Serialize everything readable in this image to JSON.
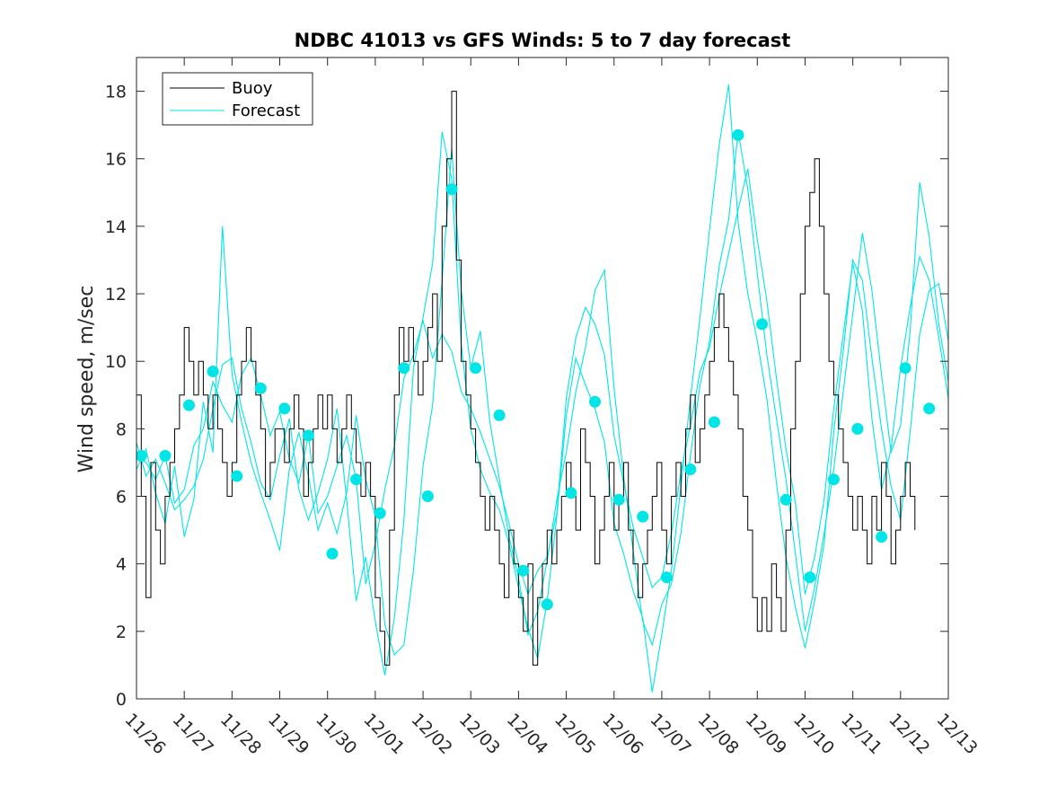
{
  "chart_data": {
    "type": "line",
    "title": "NDBC 41013 vs GFS Winds: 5 to 7 day forecast",
    "xlabel": "",
    "ylabel": "Wind speed, m/sec",
    "xlim": [
      0,
      17
    ],
    "ylim": [
      0,
      19
    ],
    "categories": [
      "11/26",
      "11/27",
      "11/28",
      "11/29",
      "11/30",
      "12/01",
      "12/02",
      "12/03",
      "12/04",
      "12/05",
      "12/06",
      "12/07",
      "12/08",
      "12/09",
      "12/10",
      "12/11",
      "12/12",
      "12/13"
    ],
    "yticks": [
      0,
      2,
      4,
      6,
      8,
      10,
      12,
      14,
      16,
      18
    ],
    "ytick_labels": [
      "0",
      "2",
      "4",
      "6",
      "8",
      "10",
      "12",
      "14",
      "16",
      "18"
    ],
    "legend": {
      "position": "top-left",
      "entries": [
        "Buoy",
        "Forecast"
      ]
    },
    "colors": {
      "buoy": "#000000",
      "forecast": "#00e5e5",
      "markers": "#00e5e5"
    },
    "series": [
      {
        "name": "Buoy",
        "x": [
          0,
          0.1,
          0.2,
          0.3,
          0.4,
          0.5,
          0.6,
          0.7,
          0.8,
          0.9,
          1.0,
          1.1,
          1.2,
          1.3,
          1.4,
          1.5,
          1.6,
          1.7,
          1.8,
          1.9,
          2.0,
          2.1,
          2.2,
          2.3,
          2.4,
          2.5,
          2.6,
          2.7,
          2.8,
          2.9,
          3.0,
          3.1,
          3.2,
          3.3,
          3.4,
          3.5,
          3.6,
          3.7,
          3.8,
          3.9,
          4.0,
          4.1,
          4.2,
          4.3,
          4.4,
          4.5,
          4.6,
          4.7,
          4.8,
          4.9,
          5.0,
          5.1,
          5.2,
          5.3,
          5.4,
          5.5,
          5.6,
          5.7,
          5.8,
          5.9,
          6.0,
          6.1,
          6.2,
          6.3,
          6.4,
          6.5,
          6.6,
          6.7,
          6.8,
          6.9,
          7.0,
          7.1,
          7.2,
          7.3,
          7.4,
          7.5,
          7.6,
          7.7,
          7.8,
          7.9,
          8.0,
          8.1,
          8.2,
          8.3,
          8.4,
          8.5,
          8.6,
          8.7,
          8.8,
          8.9,
          9.0,
          9.1,
          9.2,
          9.3,
          9.4,
          9.5,
          9.6,
          9.7,
          9.8,
          9.9,
          10.0,
          10.1,
          10.2,
          10.3,
          10.4,
          10.5,
          10.6,
          10.7,
          10.8,
          10.9,
          11.0,
          11.1,
          11.2,
          11.3,
          11.4,
          11.5,
          11.6,
          11.7,
          11.8,
          11.9,
          12.0,
          12.1,
          12.2,
          12.3,
          12.4,
          12.5,
          12.6,
          12.7,
          12.8,
          12.9,
          13.0,
          13.1,
          13.2,
          13.3,
          13.4,
          13.5,
          13.6,
          13.7,
          13.8,
          13.9,
          14.0,
          14.1,
          14.2,
          14.3,
          14.4,
          14.5,
          14.6,
          14.7,
          14.8,
          14.9,
          15.0,
          15.1,
          15.2,
          15.3,
          15.4,
          15.5,
          15.6,
          15.7,
          15.8,
          15.9,
          16.0,
          16.1,
          16.2,
          16.3
        ],
        "values": [
          9,
          6,
          3,
          7,
          5,
          4,
          6,
          7,
          8,
          9,
          11,
          10,
          9,
          10,
          9,
          8,
          9,
          8,
          7,
          6,
          7,
          9,
          10,
          11,
          10,
          9,
          8,
          6,
          7,
          8,
          8,
          7,
          8,
          9,
          8,
          6,
          7,
          8,
          9,
          8,
          9,
          8,
          7,
          8,
          9,
          8,
          7,
          6,
          7,
          6,
          3,
          2,
          1,
          5,
          9,
          11,
          10,
          11,
          10,
          9,
          10,
          11,
          12,
          10,
          14,
          16,
          18,
          13,
          10,
          9,
          8,
          7,
          6,
          5,
          6,
          5,
          4,
          3,
          5,
          4,
          3,
          2,
          4,
          1,
          3,
          4,
          5,
          4,
          5,
          6,
          7,
          6,
          5,
          8,
          7,
          6,
          4,
          5,
          6,
          7,
          5,
          6,
          7,
          5,
          4,
          3,
          4,
          5,
          6,
          7,
          5,
          4,
          6,
          7,
          6,
          8,
          9,
          7,
          8,
          9,
          10,
          11,
          12,
          11,
          10,
          9,
          8,
          6,
          5,
          3,
          2,
          3,
          2,
          4,
          3,
          2,
          5,
          8,
          10,
          12,
          14,
          15,
          16,
          14,
          12,
          10,
          9,
          8,
          7,
          6,
          5,
          6,
          5,
          4,
          6,
          5,
          7,
          6,
          4,
          5,
          6,
          7,
          6,
          5
        ]
      },
      {
        "name": "Forecast",
        "runs": [
          {
            "x": [
              0,
              0.2,
              0.4,
              0.6,
              0.8,
              1.0,
              1.2,
              1.4,
              1.6,
              1.8,
              2.0,
              2.2,
              2.4,
              2.6,
              2.8,
              3.0,
              3.2,
              3.4,
              3.6,
              3.8,
              4.0,
              4.2,
              4.4,
              4.6,
              4.8,
              5.0,
              5.2,
              5.4,
              5.6,
              5.8,
              6.0,
              6.2,
              6.4,
              6.6,
              6.8,
              7.0,
              7.2,
              7.4,
              7.6,
              7.8,
              8.0,
              8.2,
              8.4,
              8.6,
              8.8,
              9.0,
              9.2,
              9.4,
              9.6,
              9.8,
              10.0,
              10.2,
              10.4,
              10.6,
              10.8,
              11.0,
              11.2,
              11.4,
              11.6,
              11.8,
              12.0,
              12.2,
              12.4,
              12.6,
              12.8,
              13.0,
              13.2,
              13.4,
              13.6,
              13.8,
              14.0,
              14.2,
              14.4,
              14.6,
              14.8,
              15.0,
              15.2,
              15.4,
              15.6,
              15.8,
              16.0,
              16.2,
              16.4,
              16.6,
              16.8,
              17.0
            ],
            "values": [
              7.2,
              7.0,
              6.5,
              7.2,
              5.8,
              6.2,
              7.5,
              8.0,
              9.4,
              8.7,
              8.2,
              9.6,
              10.1,
              9.0,
              7.8,
              8.5,
              7.1,
              6.4,
              7.8,
              5.5,
              6.0,
              6.9,
              7.8,
              6.5,
              3.4,
              4.6,
              6.2,
              7.5,
              9.5,
              10.2,
              11.2,
              10.1,
              10.8,
              10.3,
              9.1,
              8.6,
              7.9,
              7.1,
              6.3,
              5.2,
              4.0,
              3.1,
              3.8,
              4.2,
              5.5,
              8.9,
              10.7,
              11.6,
              11.1,
              10.2,
              7.8,
              6.4,
              5.1,
              4.2,
              3.3,
              3.6,
              4.9,
              6.7,
              8.1,
              9.7,
              10.4,
              11.9,
              13.2,
              14.5,
              15.7,
              13.6,
              11.8,
              9.5,
              7.4,
              5.8,
              3.1,
              4.2,
              5.9,
              8.6,
              10.8,
              12.9,
              11.5,
              8.3,
              6.2,
              7.4,
              9.8,
              11.6,
              13.1,
              12.4,
              10.7,
              8.9
            ]
          },
          {
            "x": [
              0,
              0.2,
              0.4,
              0.6,
              0.8,
              1.0,
              1.2,
              1.4,
              1.6,
              1.8,
              2.0,
              2.2,
              2.4,
              2.6,
              2.8,
              3.0,
              3.2,
              3.4,
              3.6,
              3.8,
              4.0,
              4.2,
              4.4,
              4.6,
              4.8,
              5.0,
              5.2,
              5.4,
              5.6,
              5.8,
              6.0,
              6.2,
              6.4,
              6.6,
              6.8,
              7.0,
              7.2,
              7.4,
              7.6,
              7.8,
              8.0,
              8.2,
              8.4,
              8.6,
              8.8,
              9.0,
              9.2,
              9.4,
              9.6,
              9.8,
              10.0,
              10.2,
              10.4,
              10.6,
              10.8,
              11.0,
              11.2,
              11.4,
              11.6,
              11.8,
              12.0,
              12.2,
              12.4,
              12.6,
              12.8,
              13.0,
              13.2,
              13.4,
              13.6,
              13.8,
              14.0,
              14.2,
              14.4,
              14.6,
              14.8,
              15.0,
              15.2,
              15.4,
              15.6,
              15.8,
              16.0,
              16.2,
              16.4,
              16.6,
              16.8,
              17.0
            ],
            "values": [
              6.8,
              7.4,
              6.1,
              5.2,
              6.9,
              4.8,
              5.9,
              8.8,
              7.3,
              14.0,
              9.6,
              8.2,
              7.0,
              6.1,
              5.3,
              4.4,
              6.8,
              7.9,
              6.6,
              5.0,
              5.8,
              4.9,
              6.1,
              8.4,
              6.5,
              5.4,
              2.2,
              1.3,
              1.6,
              3.8,
              6.9,
              8.7,
              12.4,
              16.3,
              12.1,
              9.8,
              10.9,
              8.2,
              6.5,
              4.8,
              3.6,
              1.9,
              2.6,
              4.1,
              5.9,
              7.3,
              9.1,
              10.4,
              12.1,
              12.7,
              9.2,
              6.6,
              4.4,
              2.3,
              1.6,
              2.8,
              3.4,
              4.9,
              7.2,
              9.3,
              10.6,
              12.8,
              14.2,
              16.8,
              15.1,
              12.6,
              10.2,
              8.3,
              6.5,
              4.3,
              2.0,
              3.3,
              4.9,
              6.8,
              9.1,
              11.4,
              13.8,
              12.1,
              9.6,
              7.3,
              8.1,
              10.9,
              15.3,
              13.7,
              11.1,
              9.4
            ]
          },
          {
            "x": [
              0,
              0.2,
              0.4,
              0.6,
              0.8,
              1.0,
              1.2,
              1.4,
              1.6,
              1.8,
              2.0,
              2.2,
              2.4,
              2.6,
              2.8,
              3.0,
              3.2,
              3.4,
              3.6,
              3.8,
              4.0,
              4.2,
              4.4,
              4.6,
              4.8,
              5.0,
              5.2,
              5.4,
              5.6,
              5.8,
              6.0,
              6.2,
              6.4,
              6.6,
              6.8,
              7.0,
              7.2,
              7.4,
              7.6,
              7.8,
              8.0,
              8.2,
              8.4,
              8.6,
              8.8,
              9.0,
              9.2,
              9.4,
              9.6,
              9.8,
              10.0,
              10.2,
              10.4,
              10.6,
              10.8,
              11.0,
              11.2,
              11.4,
              11.6,
              11.8,
              12.0,
              12.2,
              12.4,
              12.6,
              12.8,
              13.0,
              13.2,
              13.4,
              13.6,
              13.8,
              14.0,
              14.2,
              14.4,
              14.6,
              14.8,
              15.0,
              15.2,
              15.4,
              15.6,
              15.8,
              16.0,
              16.2,
              16.4,
              16.6,
              16.8,
              17.0
            ],
            "values": [
              7.6,
              6.6,
              7.1,
              6.4,
              5.6,
              5.9,
              6.3,
              7.1,
              8.6,
              9.9,
              10.1,
              8.6,
              7.6,
              6.4,
              5.9,
              7.2,
              8.3,
              6.2,
              5.3,
              6.1,
              7.1,
              8.6,
              5.9,
              2.9,
              4.2,
              2.3,
              0.7,
              2.4,
              5.3,
              9.8,
              11.3,
              12.9,
              16.8,
              15.4,
              10.5,
              8.0,
              6.8,
              6.1,
              5.6,
              4.6,
              3.3,
              2.1,
              1.2,
              2.9,
              5.4,
              8.4,
              10.1,
              9.3,
              8.6,
              7.6,
              5.2,
              4.3,
              3.2,
              2.4,
              0.2,
              1.9,
              3.8,
              6.3,
              8.9,
              11.3,
              13.9,
              16.4,
              18.2,
              14.1,
              12.0,
              10.6,
              8.9,
              6.4,
              4.2,
              2.7,
              1.5,
              2.9,
              4.6,
              7.9,
              10.3,
              13.0,
              12.4,
              10.1,
              8.0,
              6.3,
              5.3,
              7.9,
              10.8,
              12.1,
              12.3,
              10.6
            ]
          }
        ]
      },
      {
        "name": "Forecast markers",
        "x": [
          0.1,
          0.6,
          1.1,
          1.6,
          2.1,
          2.6,
          3.1,
          3.6,
          4.1,
          4.6,
          5.1,
          5.6,
          6.1,
          6.6,
          7.1,
          7.6,
          8.1,
          8.6,
          9.1,
          9.6,
          10.1,
          10.6,
          11.1,
          11.6,
          12.1,
          12.6,
          13.1,
          13.6,
          14.1,
          14.6,
          15.1,
          15.6,
          16.1,
          16.6
        ],
        "values": [
          7.2,
          7.2,
          8.7,
          9.7,
          6.6,
          9.2,
          8.6,
          7.8,
          4.3,
          6.5,
          5.5,
          9.8,
          6.0,
          15.1,
          9.8,
          8.4,
          3.8,
          2.8,
          6.1,
          8.8,
          5.9,
          5.4,
          3.6,
          6.8,
          8.2,
          16.7,
          11.1,
          5.9,
          3.6,
          6.5,
          8.0,
          4.8,
          9.8,
          8.6
        ]
      }
    ]
  }
}
